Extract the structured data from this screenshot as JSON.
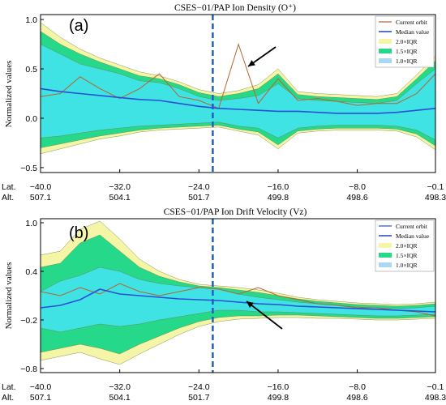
{
  "panels": [
    {
      "label": "(a)",
      "title": "CSES−01/PAP Ion Density (O⁺)",
      "ylabel": "Normalized values",
      "yticks": [
        "1.0",
        "0.5",
        "0.0",
        "−0.5"
      ],
      "xticks_lat": [
        "−40.0",
        "−32.0",
        "−24.0",
        "−16.0",
        "−8.0",
        "−0.1"
      ],
      "xticks_alt": [
        "507.1",
        "504.1",
        "501.7",
        "499.8",
        "498.6",
        "498.3"
      ],
      "lat_prefix": "Lat.",
      "alt_prefix": "Alt.",
      "legend": [
        "Current orbit",
        "Median value",
        "2.0×IQR",
        "1.5×IQR",
        "1.0×IQR"
      ]
    },
    {
      "label": "(b)",
      "title": "CSES−01/PAP Ion Drift Velocity (Vz)",
      "ylabel": "Normalized values",
      "yticks": [
        "1.0",
        "0.4",
        "−0.2",
        "−0.8"
      ],
      "xticks_lat": [
        "−40.0",
        "−32.0",
        "−24.0",
        "−16.0",
        "−8.0",
        "−0.1"
      ],
      "xticks_alt": [
        "507.1",
        "504.1",
        "501.7",
        "499.8",
        "498.6",
        "498.3"
      ],
      "lat_prefix": "Lat.",
      "alt_prefix": "Alt.",
      "legend": [
        "Current orbit",
        "Median value",
        "2.0×IQR",
        "1.5×IQR",
        "1.0×IQR"
      ]
    }
  ],
  "colors": {
    "band_2iqr": "#f5f5a8",
    "band_15iqr": "#26d98a",
    "band_1iqr": "#3fe3e3",
    "median": "#2a4fd6",
    "current": "#b5652e",
    "event_line": "#1f5fc4",
    "arrow": "#000000"
  },
  "chart_data": [
    {
      "type": "area",
      "title": "CSES−01/PAP Ion Density (O⁺)",
      "ylabel": "Normalized values",
      "xlabel": "Lat. / Alt.",
      "xlim": [
        -40.0,
        -0.1
      ],
      "ylim": [
        -0.55,
        1.05
      ],
      "event_lat": -22.6,
      "arrow_target_lat": -19.5,
      "x": [
        -40,
        -38,
        -36,
        -34,
        -32,
        -30,
        -28,
        -26,
        -24,
        -22,
        -20,
        -18,
        -16,
        -14,
        -12,
        -10,
        -8,
        -6,
        -4,
        -2,
        -0.1
      ],
      "series": [
        {
          "name": "Median value",
          "values": [
            0.3,
            0.27,
            0.25,
            0.23,
            0.21,
            0.19,
            0.18,
            0.15,
            0.12,
            0.1,
            0.09,
            0.08,
            0.07,
            0.07,
            0.06,
            0.05,
            0.05,
            0.05,
            0.06,
            0.08,
            0.1
          ]
        },
        {
          "name": "Current orbit",
          "values": [
            0.22,
            0.25,
            0.42,
            0.3,
            0.2,
            0.3,
            0.45,
            0.22,
            0.18,
            0.1,
            0.75,
            0.15,
            0.4,
            0.18,
            0.2,
            0.17,
            0.13,
            0.15,
            0.15,
            0.25,
            0.45
          ]
        },
        {
          "name": "1.0×IQR",
          "upper": [
            0.75,
            0.65,
            0.55,
            0.5,
            0.45,
            0.38,
            0.36,
            0.3,
            0.22,
            0.18,
            0.2,
            0.23,
            0.35,
            0.2,
            0.18,
            0.17,
            0.16,
            0.15,
            0.18,
            0.35,
            0.5
          ],
          "lower": [
            -0.2,
            -0.18,
            -0.15,
            -0.12,
            -0.1,
            -0.08,
            -0.07,
            -0.06,
            -0.05,
            -0.04,
            -0.08,
            -0.1,
            -0.2,
            -0.1,
            -0.08,
            -0.07,
            -0.07,
            -0.07,
            -0.08,
            -0.12,
            -0.22
          ]
        },
        {
          "name": "1.5×IQR",
          "upper": [
            0.88,
            0.75,
            0.65,
            0.57,
            0.5,
            0.43,
            0.4,
            0.34,
            0.26,
            0.22,
            0.25,
            0.3,
            0.45,
            0.24,
            0.22,
            0.21,
            0.2,
            0.19,
            0.22,
            0.4,
            0.58
          ],
          "lower": [
            -0.3,
            -0.26,
            -0.22,
            -0.18,
            -0.15,
            -0.12,
            -0.1,
            -0.09,
            -0.08,
            -0.07,
            -0.11,
            -0.14,
            -0.27,
            -0.13,
            -0.11,
            -0.1,
            -0.1,
            -0.1,
            -0.11,
            -0.16,
            -0.28
          ]
        },
        {
          "name": "2.0×IQR",
          "upper": [
            0.97,
            0.82,
            0.7,
            0.61,
            0.54,
            0.47,
            0.43,
            0.37,
            0.29,
            0.25,
            0.28,
            0.34,
            0.5,
            0.27,
            0.25,
            0.24,
            0.23,
            0.22,
            0.25,
            0.44,
            0.63
          ],
          "lower": [
            -0.36,
            -0.31,
            -0.26,
            -0.21,
            -0.18,
            -0.14,
            -0.12,
            -0.11,
            -0.1,
            -0.09,
            -0.13,
            -0.17,
            -0.31,
            -0.15,
            -0.13,
            -0.12,
            -0.12,
            -0.12,
            -0.13,
            -0.19,
            -0.32
          ]
        }
      ]
    },
    {
      "type": "area",
      "title": "CSES−01/PAP Ion Drift Velocity (Vz)",
      "ylabel": "Normalized values",
      "xlabel": "Lat. / Alt.",
      "xlim": [
        -40.0,
        -0.1
      ],
      "ylim": [
        -0.85,
        1.05
      ],
      "event_lat": -22.6,
      "arrow_target_lat": -18.5,
      "x": [
        -40,
        -38,
        -36,
        -34,
        -32,
        -30,
        -28,
        -26,
        -24,
        -22,
        -20,
        -18,
        -16,
        -14,
        -12,
        -10,
        -8,
        -6,
        -4,
        -2,
        -0.1
      ],
      "series": [
        {
          "name": "Median value",
          "values": [
            -0.05,
            -0.02,
            0.05,
            0.18,
            0.12,
            0.1,
            0.08,
            0.06,
            0.05,
            0.04,
            0.02,
            0.0,
            -0.01,
            -0.03,
            -0.04,
            -0.05,
            -0.06,
            -0.07,
            -0.08,
            -0.09,
            -0.1
          ]
        },
        {
          "name": "Current orbit",
          "values": [
            0.15,
            0.1,
            0.2,
            0.12,
            0.25,
            0.15,
            0.1,
            0.15,
            0.2,
            0.18,
            0.12,
            0.2,
            0.1,
            0.05,
            0.0,
            -0.02,
            -0.05,
            -0.05,
            -0.08,
            -0.1,
            -0.15
          ]
        },
        {
          "name": "1.0×IQR",
          "upper": [
            0.15,
            0.28,
            0.35,
            0.45,
            0.4,
            0.3,
            0.25,
            0.22,
            0.2,
            0.18,
            0.12,
            0.08,
            0.05,
            0.02,
            0.0,
            -0.02,
            -0.04,
            -0.05,
            -0.06,
            -0.05,
            -0.03
          ],
          "lower": [
            -0.3,
            -0.35,
            -0.3,
            -0.25,
            -0.28,
            -0.25,
            -0.2,
            -0.16,
            -0.12,
            -0.08,
            -0.08,
            -0.1,
            -0.1,
            -0.11,
            -0.12,
            -0.13,
            -0.14,
            -0.15,
            -0.15,
            -0.14,
            -0.13
          ]
        },
        {
          "name": "1.5×IQR",
          "upper": [
            0.45,
            0.5,
            0.75,
            0.85,
            0.65,
            0.45,
            0.34,
            0.27,
            0.22,
            0.2,
            0.17,
            0.14,
            0.1,
            0.06,
            0.03,
            0.01,
            -0.01,
            -0.02,
            -0.03,
            -0.02,
            0.0
          ],
          "lower": [
            -0.6,
            -0.55,
            -0.5,
            -0.55,
            -0.62,
            -0.5,
            -0.4,
            -0.3,
            -0.22,
            -0.17,
            -0.15,
            -0.15,
            -0.14,
            -0.14,
            -0.15,
            -0.16,
            -0.17,
            -0.18,
            -0.18,
            -0.17,
            -0.16
          ]
        },
        {
          "name": "2.0×IQR",
          "upper": [
            0.6,
            0.65,
            0.92,
            1.02,
            0.8,
            0.55,
            0.4,
            0.3,
            0.24,
            0.22,
            0.2,
            0.17,
            0.13,
            0.08,
            0.05,
            0.03,
            0.01,
            0.0,
            -0.01,
            0.0,
            0.02
          ],
          "lower": [
            -0.7,
            -0.65,
            -0.6,
            -0.68,
            -0.75,
            -0.62,
            -0.5,
            -0.38,
            -0.28,
            -0.22,
            -0.19,
            -0.18,
            -0.17,
            -0.17,
            -0.18,
            -0.18,
            -0.19,
            -0.2,
            -0.2,
            -0.19,
            -0.18
          ]
        }
      ]
    }
  ]
}
